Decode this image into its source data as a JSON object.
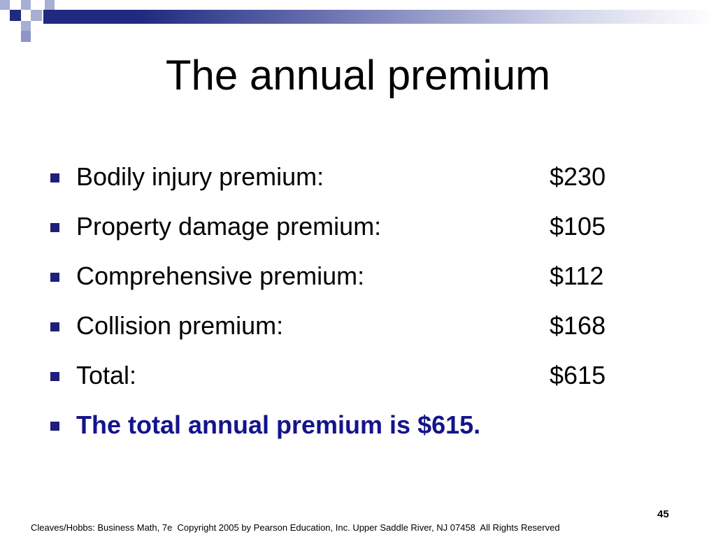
{
  "slide": {
    "title": "The annual premium",
    "items": [
      {
        "label": "Bodily injury premium:",
        "amount": "$230"
      },
      {
        "label": "Property damage premium:",
        "amount": "$105"
      },
      {
        "label": "Comprehensive premium:",
        "amount": "$112"
      },
      {
        "label": "Collision premium:",
        "amount": "$168"
      },
      {
        "label": "Total:",
        "amount": "$615"
      }
    ],
    "conclusion": "The total annual premium is $615.",
    "footer": "Cleaves/Hobbs: Business Math, 7e  Copyright 2005 by Pearson Education, Inc. Upper Saddle River, NJ 07458  All Rights Reserved",
    "page_number": "45"
  },
  "colors": {
    "accent": "#1f2a80",
    "highlight_text": "#14148c",
    "bullet": "#1f1f7a"
  }
}
